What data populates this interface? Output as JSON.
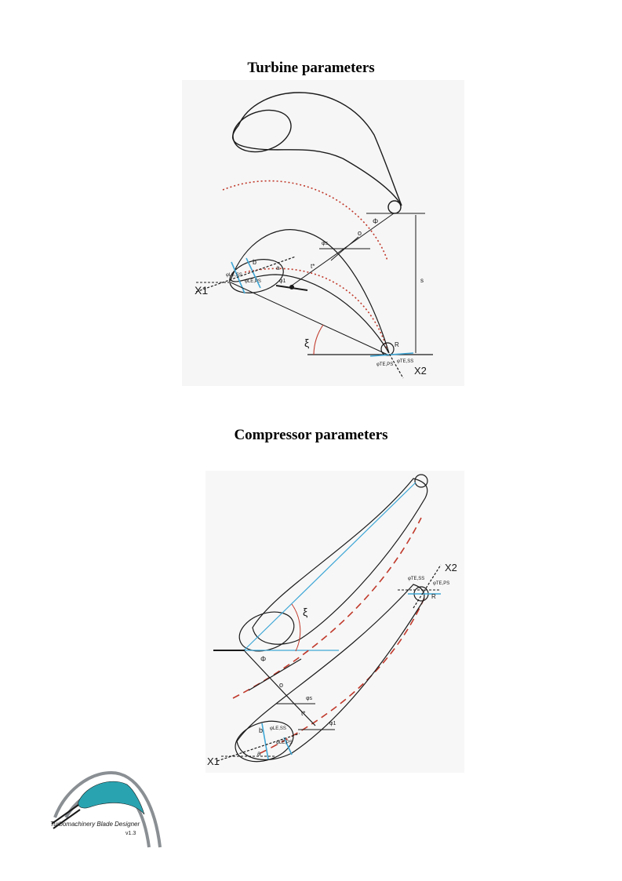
{
  "turbine": {
    "title": "Turbine parameters",
    "labels": {
      "phi_upper": "Φ",
      "o": "o",
      "phi_s": "φs",
      "b": "b",
      "a": "a",
      "phi_le_ss": "φLE,SS",
      "phi_le_ps": "φLE,PS",
      "x1": "X1",
      "t_star": "t*",
      "phi_1": "φ1",
      "s": "s",
      "xi": "ξ",
      "r": "R",
      "phi_te_ps": "φTE,PS",
      "phi_te_ss": "φTE,SS",
      "x2": "X2"
    }
  },
  "compressor": {
    "title": "Compressor parameters",
    "labels": {
      "xi": "ξ",
      "phi_upper": "Φ",
      "o": "o",
      "phi_s": "φs",
      "t_star": "t*",
      "phi_1": "φ1",
      "b": "b",
      "a": "a",
      "phi_le_ss": "φLE,SS",
      "phi_le_ps": "φLE,PS",
      "x1": "X1",
      "x2": "X2",
      "r": "R",
      "phi_te_ss": "φTE,SS",
      "phi_te_ps": "φTE,PS"
    }
  },
  "logo": {
    "name": "Turbomachinery Blade Designer",
    "version": "v1.3"
  },
  "colors": {
    "line": "#1a1a1a",
    "camber_red": "#c0392b",
    "blue": "#3fa7d6",
    "logo_teal": "#2aa3b0",
    "logo_gray": "#8a8f94"
  }
}
